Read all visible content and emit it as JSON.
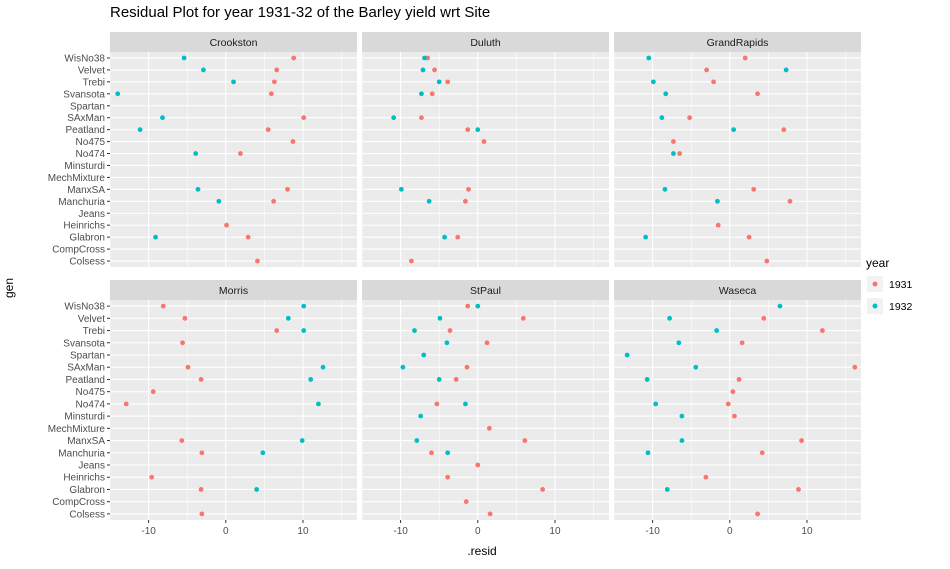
{
  "chart_data": {
    "type": "scatter",
    "title": "Residual Plot for year 1931-32 of the Barley yield wrt Site",
    "xlabel": ".resid",
    "ylabel": "gen",
    "xlim": [
      -15,
      17
    ],
    "x_ticks": [
      -10,
      0,
      10
    ],
    "x_tick_labels": [
      "-10",
      "0",
      "10"
    ],
    "categories": [
      "WisNo38",
      "Velvet",
      "Trebi",
      "Svansota",
      "Spartan",
      "SAxMan",
      "Peatland",
      "No475",
      "No474",
      "Minsturdi",
      "MechMixture",
      "ManxSA",
      "Manchuria",
      "Jeans",
      "Heinrichs",
      "Glabron",
      "CompCross",
      "Colsess"
    ],
    "legend": {
      "title": "year",
      "placement": "right",
      "entries": [
        {
          "label": "1931",
          "color": "#F8766D"
        },
        {
          "label": "1932",
          "color": "#00BFC4"
        }
      ]
    },
    "colors": {
      "1931": "#F8766D",
      "1932": "#00BFC4",
      "panel_bg": "#EBEBEB",
      "strip_bg": "#D9D9D9"
    },
    "grid": true,
    "panels": [
      {
        "site": "Crookston",
        "series": [
          {
            "year": "1931",
            "points": [
              [
                "WisNo38",
                8.8
              ],
              [
                "Velvet",
                6.6
              ],
              [
                "Trebi",
                6.3
              ],
              [
                "Svansota",
                5.9
              ],
              [
                "SAxMan",
                10.1
              ],
              [
                "Peatland",
                5.5
              ],
              [
                "No475",
                8.7
              ],
              [
                "No474",
                1.9
              ],
              [
                "ManxSA",
                8.0
              ],
              [
                "Manchuria",
                6.2
              ],
              [
                "Heinrichs",
                0.1
              ],
              [
                "Glabron",
                2.9
              ],
              [
                "Colsess",
                4.1
              ]
            ]
          },
          {
            "year": "1932",
            "points": [
              [
                "WisNo38",
                -5.4
              ],
              [
                "Velvet",
                -2.9
              ],
              [
                "Trebi",
                1.0
              ],
              [
                "Svansota",
                -14.0
              ],
              [
                "SAxMan",
                -8.2
              ],
              [
                "Peatland",
                -11.1
              ],
              [
                "No474",
                -3.9
              ],
              [
                "ManxSA",
                -3.6
              ],
              [
                "Manchuria",
                -0.9
              ],
              [
                "Glabron",
                -9.1
              ]
            ]
          }
        ]
      },
      {
        "site": "Duluth",
        "series": [
          {
            "year": "1931",
            "points": [
              [
                "WisNo38",
                -6.5
              ],
              [
                "Velvet",
                -5.6
              ],
              [
                "Trebi",
                -3.9
              ],
              [
                "Svansota",
                -5.9
              ],
              [
                "SAxMan",
                -7.3
              ],
              [
                "Peatland",
                -1.3
              ],
              [
                "No475",
                0.8
              ],
              [
                "ManxSA",
                -1.2
              ],
              [
                "Manchuria",
                -1.6
              ],
              [
                "Glabron",
                -2.6
              ],
              [
                "Colsess",
                -8.6
              ]
            ]
          },
          {
            "year": "1932",
            "points": [
              [
                "WisNo38",
                -6.9
              ],
              [
                "Velvet",
                -7.1
              ],
              [
                "Trebi",
                -5.0
              ],
              [
                "Svansota",
                -7.3
              ],
              [
                "SAxMan",
                -10.9
              ],
              [
                "Peatland",
                0.0
              ],
              [
                "ManxSA",
                -9.9
              ],
              [
                "Manchuria",
                -6.3
              ],
              [
                "Glabron",
                -4.3
              ]
            ]
          }
        ]
      },
      {
        "site": "GrandRapids",
        "series": [
          {
            "year": "1931",
            "points": [
              [
                "WisNo38",
                2.0
              ],
              [
                "Velvet",
                -3.0
              ],
              [
                "Trebi",
                -2.1
              ],
              [
                "Svansota",
                3.6
              ],
              [
                "SAxMan",
                -5.2
              ],
              [
                "Peatland",
                7.0
              ],
              [
                "No475",
                -7.3
              ],
              [
                "No474",
                -6.5
              ],
              [
                "ManxSA",
                3.1
              ],
              [
                "Manchuria",
                7.8
              ],
              [
                "Heinrichs",
                -1.5
              ],
              [
                "Glabron",
                2.5
              ],
              [
                "Colsess",
                4.8
              ]
            ]
          },
          {
            "year": "1932",
            "points": [
              [
                "WisNo38",
                -10.5
              ],
              [
                "Velvet",
                7.3
              ],
              [
                "Trebi",
                -9.9
              ],
              [
                "Svansota",
                -8.3
              ],
              [
                "SAxMan",
                -8.8
              ],
              [
                "Peatland",
                0.5
              ],
              [
                "No474",
                -7.3
              ],
              [
                "ManxSA",
                -8.4
              ],
              [
                "Manchuria",
                -1.6
              ],
              [
                "Glabron",
                -10.9
              ]
            ]
          }
        ]
      },
      {
        "site": "Morris",
        "series": [
          {
            "year": "1931",
            "points": [
              [
                "WisNo38",
                -8.1
              ],
              [
                "Velvet",
                -5.3
              ],
              [
                "Trebi",
                6.6
              ],
              [
                "Svansota",
                -5.6
              ],
              [
                "SAxMan",
                -4.9
              ],
              [
                "Peatland",
                -3.2
              ],
              [
                "No475",
                -9.4
              ],
              [
                "No474",
                -12.9
              ],
              [
                "ManxSA",
                -5.7
              ],
              [
                "Manchuria",
                -3.1
              ],
              [
                "Heinrichs",
                -9.6
              ],
              [
                "Glabron",
                -3.2
              ],
              [
                "Colsess",
                -3.1
              ]
            ]
          },
          {
            "year": "1932",
            "points": [
              [
                "WisNo38",
                10.1
              ],
              [
                "Velvet",
                8.1
              ],
              [
                "Trebi",
                10.1
              ],
              [
                "SAxMan",
                12.6
              ],
              [
                "Peatland",
                11.0
              ],
              [
                "No474",
                12.0
              ],
              [
                "ManxSA",
                9.9
              ],
              [
                "Manchuria",
                4.8
              ],
              [
                "Glabron",
                4.0
              ]
            ]
          }
        ]
      },
      {
        "site": "StPaul",
        "series": [
          {
            "year": "1931",
            "points": [
              [
                "WisNo38",
                -1.3
              ],
              [
                "Velvet",
                5.9
              ],
              [
                "Trebi",
                -3.6
              ],
              [
                "Svansota",
                1.2
              ],
              [
                "SAxMan",
                -1.4
              ],
              [
                "Peatland",
                -2.8
              ],
              [
                "No474",
                -5.3
              ],
              [
                "MechMixture",
                1.5
              ],
              [
                "ManxSA",
                6.1
              ],
              [
                "Manchuria",
                -6.0
              ],
              [
                "Jeans",
                0.0
              ],
              [
                "Heinrichs",
                -3.9
              ],
              [
                "Glabron",
                8.4
              ],
              [
                "CompCross",
                -1.5
              ],
              [
                "Colsess",
                1.6
              ]
            ]
          },
          {
            "year": "1932",
            "points": [
              [
                "WisNo38",
                0.0
              ],
              [
                "Velvet",
                -4.9
              ],
              [
                "Trebi",
                -8.2
              ],
              [
                "Svansota",
                -4.0
              ],
              [
                "Spartan",
                -7.0
              ],
              [
                "SAxMan",
                -9.7
              ],
              [
                "Peatland",
                -5.0
              ],
              [
                "No474",
                -1.6
              ],
              [
                "Minsturdi",
                -7.4
              ],
              [
                "ManxSA",
                -7.9
              ],
              [
                "Manchuria",
                -3.9
              ]
            ]
          }
        ]
      },
      {
        "site": "Waseca",
        "series": [
          {
            "year": "1931",
            "points": [
              [
                "Velvet",
                4.4
              ],
              [
                "Trebi",
                12.0
              ],
              [
                "Svansota",
                1.6
              ],
              [
                "SAxMan",
                16.2
              ],
              [
                "Peatland",
                1.2
              ],
              [
                "No475",
                0.4
              ],
              [
                "No474",
                -0.2
              ],
              [
                "Minsturdi",
                0.6
              ],
              [
                "ManxSA",
                9.3
              ],
              [
                "Manchuria",
                4.2
              ],
              [
                "Heinrichs",
                -3.1
              ],
              [
                "Glabron",
                8.9
              ],
              [
                "Colsess",
                3.6
              ]
            ]
          },
          {
            "year": "1932",
            "points": [
              [
                "WisNo38",
                6.5
              ],
              [
                "Velvet",
                -7.8
              ],
              [
                "Trebi",
                -1.7
              ],
              [
                "Svansota",
                -6.6
              ],
              [
                "Spartan",
                -13.3
              ],
              [
                "SAxMan",
                -4.4
              ],
              [
                "Peatland",
                -10.7
              ],
              [
                "No474",
                -9.6
              ],
              [
                "Minsturdi",
                -6.2
              ],
              [
                "ManxSA",
                -6.2
              ],
              [
                "Manchuria",
                -10.6
              ],
              [
                "Glabron",
                -8.1
              ]
            ]
          }
        ]
      }
    ]
  }
}
